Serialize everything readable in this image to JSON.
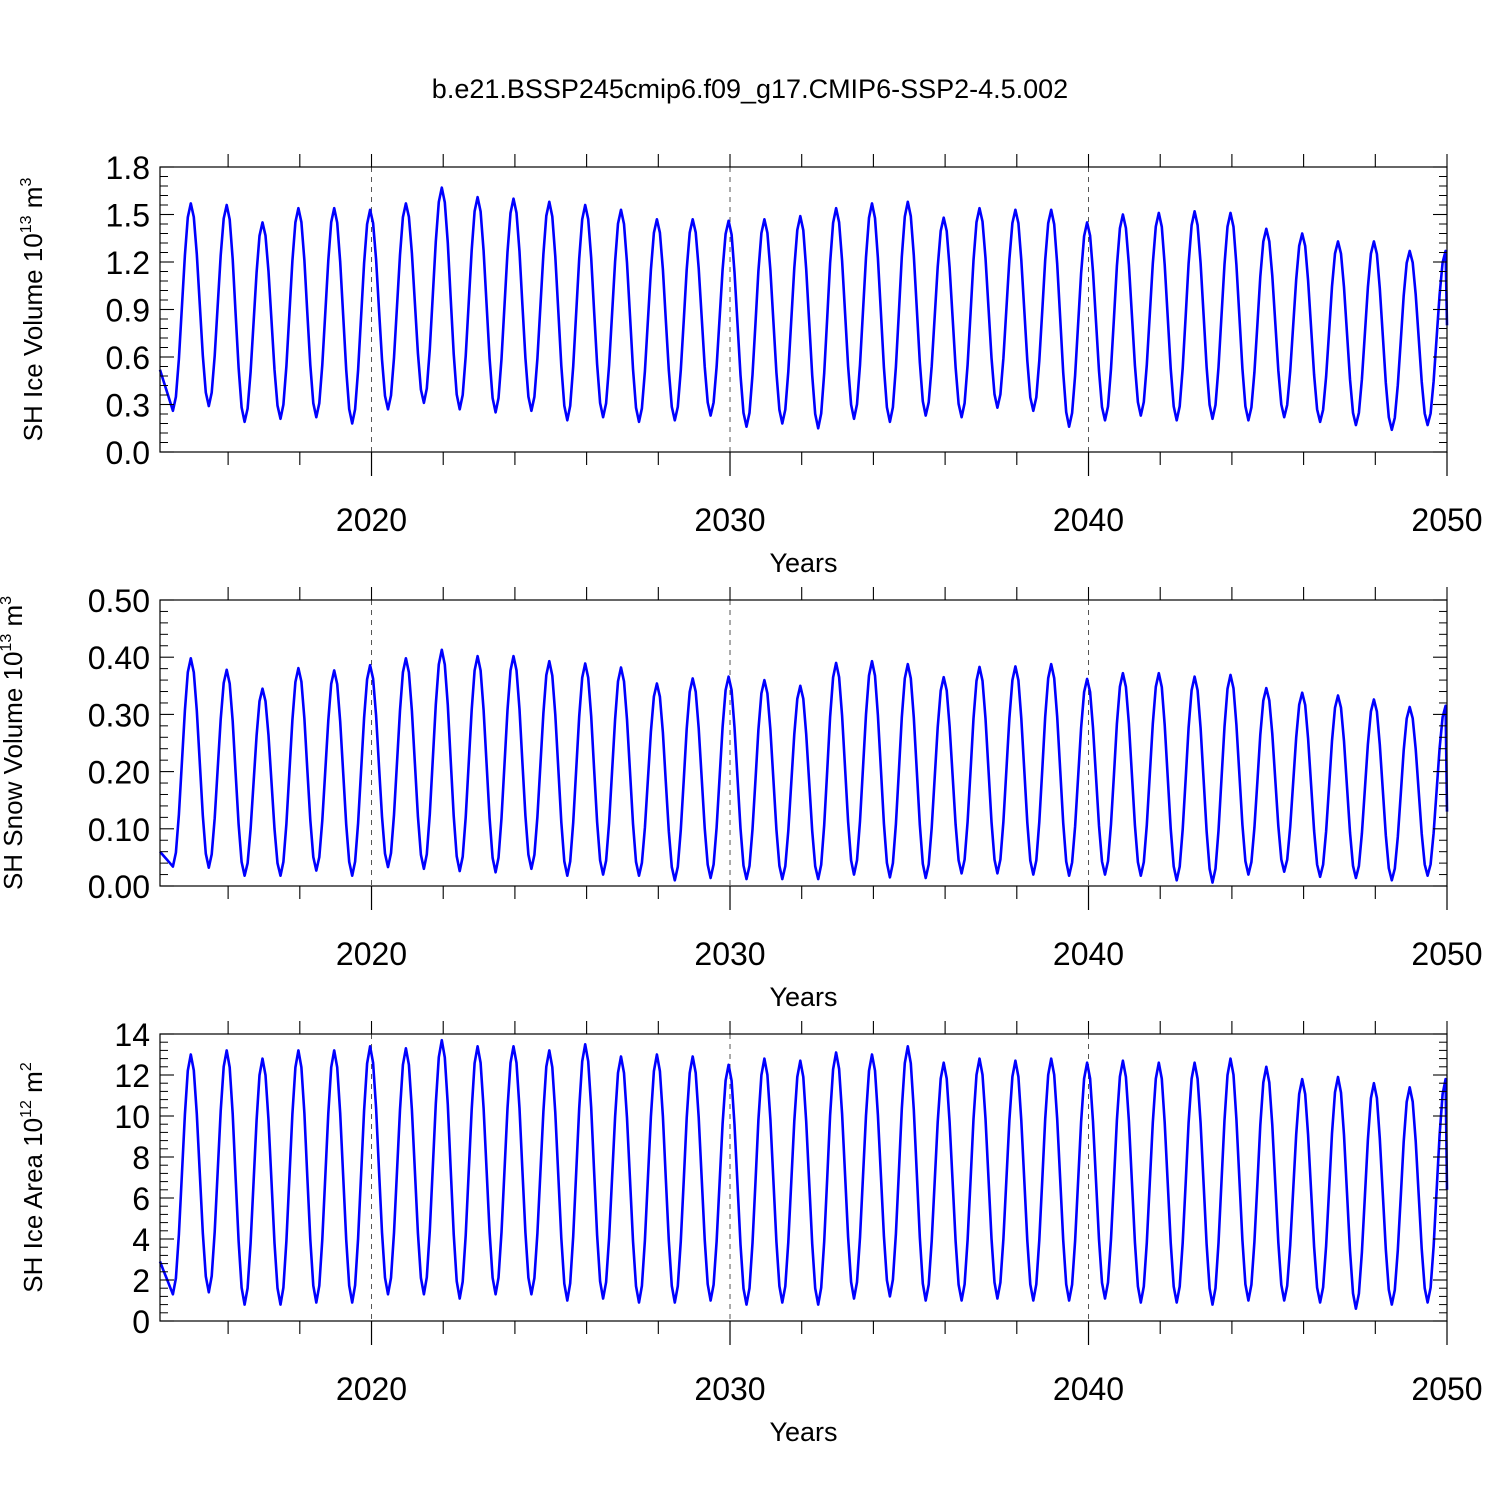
{
  "title": "b.e21.BSSP245cmip6.f09_g17.CMIP6-SSP2-4.5.002",
  "colors": {
    "series": "#0000ff",
    "axis": "#000000",
    "grid": "#555555"
  },
  "chart_data": [
    {
      "type": "line",
      "xlabel": "Years",
      "ylabel": "SH Ice Volume 10",
      "ylabel_exp": "13",
      "ylabel_unit": "m",
      "ylabel_unit_exp": "3",
      "xlim": [
        2014.1,
        2050
      ],
      "ylim": [
        0,
        1.8
      ],
      "yticks": [
        "0.0",
        "0.3",
        "0.6",
        "0.9",
        "1.2",
        "1.5",
        "1.8"
      ],
      "xticks": [
        "2020",
        "2030",
        "2040",
        "2050"
      ],
      "grid_x": [
        2020,
        2030,
        2040
      ],
      "series": [
        {
          "min": [
            0.26,
            0.29,
            0.19,
            0.21,
            0.22,
            0.18,
            0.27,
            0.31,
            0.27,
            0.25,
            0.26,
            0.2,
            0.22,
            0.19,
            0.2,
            0.23,
            0.16,
            0.18,
            0.15,
            0.21,
            0.19,
            0.23,
            0.22,
            0.28,
            0.26,
            0.16,
            0.2,
            0.23,
            0.2,
            0.21,
            0.2,
            0.22,
            0.19,
            0.17,
            0.14,
            0.17
          ],
          "max": [
            1.57,
            1.56,
            1.45,
            1.54,
            1.54,
            1.53,
            1.57,
            1.67,
            1.61,
            1.6,
            1.58,
            1.56,
            1.53,
            1.47,
            1.47,
            1.46,
            1.47,
            1.49,
            1.54,
            1.57,
            1.58,
            1.48,
            1.54,
            1.53,
            1.53,
            1.45,
            1.5,
            1.51,
            1.52,
            1.51,
            1.41,
            1.38,
            1.33,
            1.33,
            1.27,
            1.27
          ],
          "start_value": 0.52,
          "end_value": 0.8
        }
      ]
    },
    {
      "type": "line",
      "xlabel": "Years",
      "ylabel": "SH Snow Volume 10",
      "ylabel_exp": "13",
      "ylabel_unit": "m",
      "ylabel_unit_exp": "3",
      "xlim": [
        2014.1,
        2050
      ],
      "ylim": [
        0,
        0.5
      ],
      "yticks": [
        "0.00",
        "0.10",
        "0.20",
        "0.30",
        "0.40",
        "0.50"
      ],
      "xticks": [
        "2020",
        "2030",
        "2040",
        "2050"
      ],
      "grid_x": [
        2020,
        2030,
        2040
      ],
      "series": [
        {
          "min": [
            0.034,
            0.032,
            0.018,
            0.018,
            0.027,
            0.018,
            0.033,
            0.03,
            0.026,
            0.024,
            0.03,
            0.018,
            0.02,
            0.018,
            0.01,
            0.014,
            0.012,
            0.012,
            0.012,
            0.02,
            0.015,
            0.014,
            0.022,
            0.022,
            0.02,
            0.018,
            0.02,
            0.018,
            0.01,
            0.006,
            0.02,
            0.025,
            0.016,
            0.014,
            0.01,
            0.018
          ],
          "max": [
            0.398,
            0.378,
            0.345,
            0.381,
            0.377,
            0.386,
            0.398,
            0.413,
            0.402,
            0.402,
            0.393,
            0.389,
            0.382,
            0.354,
            0.363,
            0.366,
            0.36,
            0.35,
            0.39,
            0.393,
            0.388,
            0.365,
            0.383,
            0.384,
            0.388,
            0.362,
            0.372,
            0.372,
            0.366,
            0.369,
            0.346,
            0.338,
            0.333,
            0.326,
            0.313,
            0.315
          ],
          "start_value": 0.06,
          "end_value": 0.13
        }
      ]
    },
    {
      "type": "line",
      "xlabel": "Years",
      "ylabel": "SH Ice Area 10",
      "ylabel_exp": "12",
      "ylabel_unit": "m",
      "ylabel_unit_exp": "2",
      "xlim": [
        2014.1,
        2050
      ],
      "ylim": [
        0,
        14
      ],
      "yticks": [
        "0",
        "2",
        "4",
        "6",
        "8",
        "10",
        "12",
        "14"
      ],
      "xticks": [
        "2020",
        "2030",
        "2040",
        "2050"
      ],
      "grid_x": [
        2020,
        2030,
        2040
      ],
      "series": [
        {
          "min": [
            1.3,
            1.4,
            0.8,
            0.8,
            0.9,
            0.9,
            1.3,
            1.3,
            1.1,
            1.3,
            1.3,
            1.0,
            1.1,
            0.9,
            0.9,
            1.0,
            0.8,
            0.9,
            0.8,
            1.1,
            1.2,
            1.0,
            1.0,
            1.1,
            1.0,
            1.0,
            1.1,
            0.9,
            0.9,
            0.8,
            1.0,
            1.0,
            0.9,
            0.6,
            0.8,
            0.9
          ],
          "max": [
            13.0,
            13.2,
            12.8,
            13.2,
            13.2,
            13.4,
            13.3,
            13.7,
            13.4,
            13.4,
            13.2,
            13.5,
            12.9,
            13.0,
            12.9,
            12.5,
            12.8,
            12.7,
            13.1,
            13.0,
            13.4,
            12.6,
            12.8,
            12.7,
            12.8,
            12.6,
            12.7,
            12.6,
            12.6,
            12.8,
            12.4,
            11.8,
            11.9,
            11.6,
            11.4,
            11.8
          ],
          "start_value": 2.9,
          "end_value": 6.4
        }
      ]
    }
  ]
}
